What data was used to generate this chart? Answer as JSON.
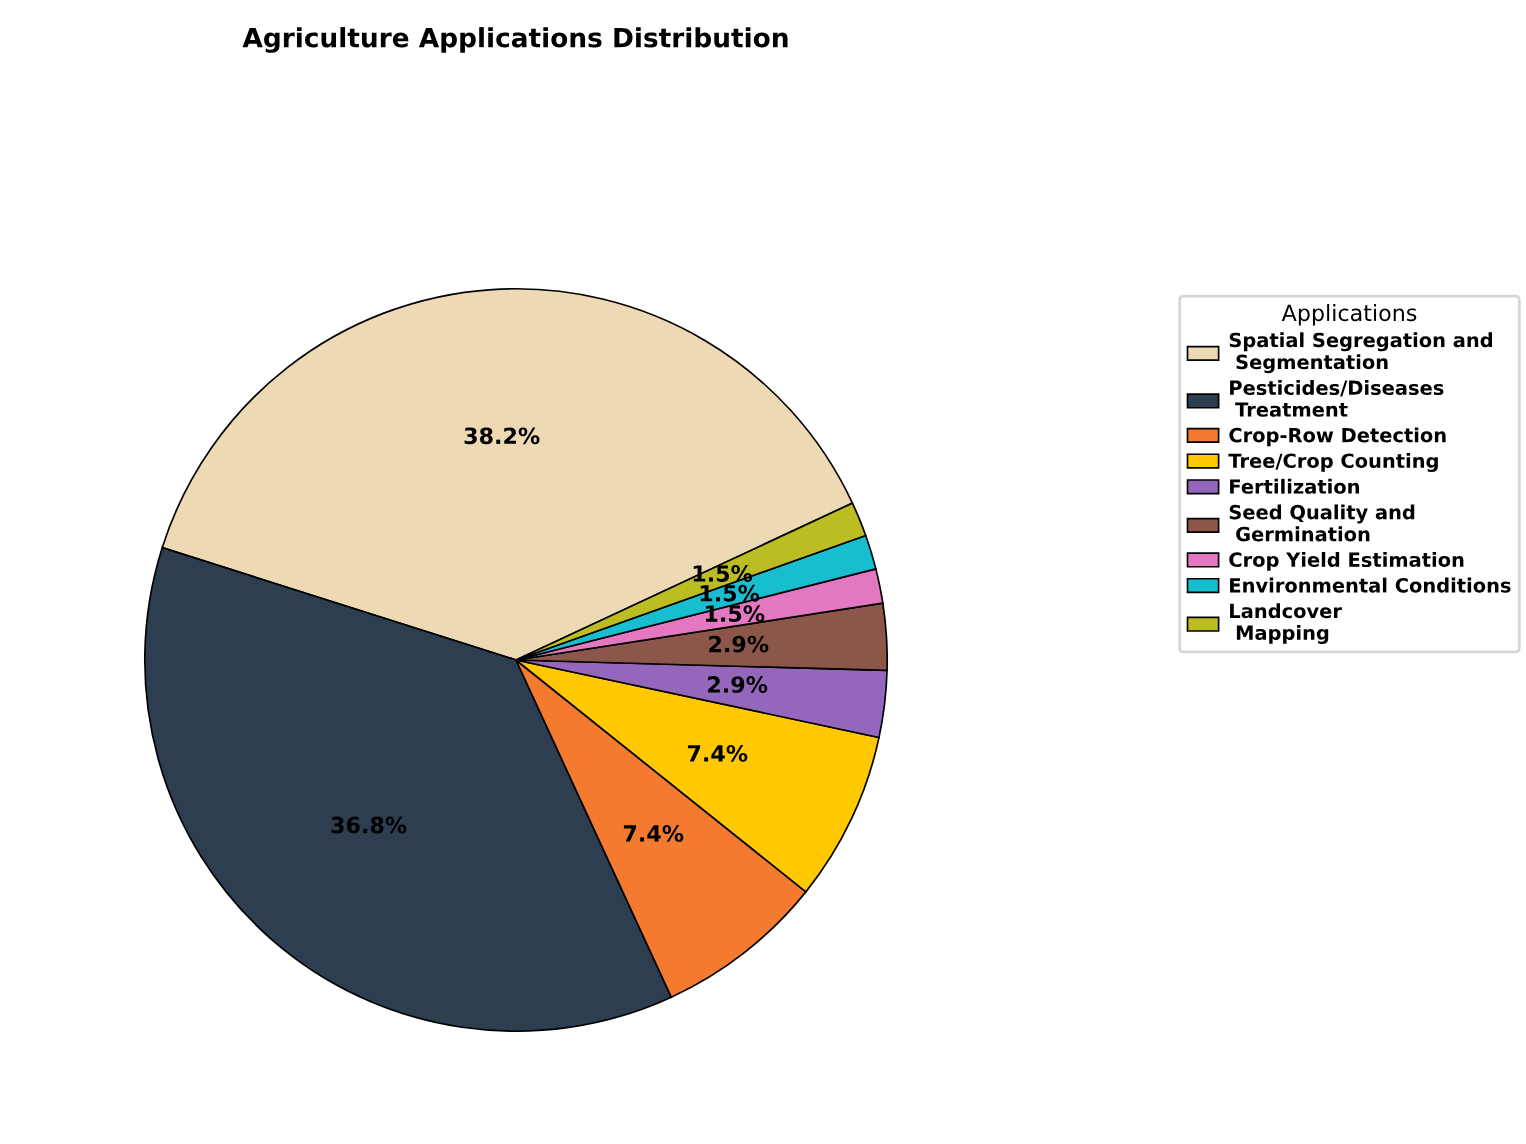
{
  "chart_data": {
    "type": "pie",
    "title": "Agriculture Applications Distribution",
    "legend_title": "Applications",
    "legend": "right",
    "value_labels": [
      "38.2%",
      "36.8%",
      "7.4%",
      "7.4%",
      "2.9%",
      "2.9%",
      "1.5%",
      "1.5%",
      "1.5%"
    ],
    "categories": [
      "Spatial Segregation and\n Segmentation",
      "Pesticides/Diseases\n Treatment",
      "Crop-Row Detection",
      "Tree/Crop Counting",
      "Fertilization",
      "Seed Quality and\n Germination",
      "Crop Yield Estimation",
      "Environmental Conditions",
      "Landcover\n Mapping"
    ],
    "values": [
      38.2,
      36.8,
      7.4,
      7.4,
      2.9,
      2.9,
      1.5,
      1.5,
      1.5
    ],
    "colors": [
      "#eed9b5",
      "#2c3e50",
      "#f47a30",
      "#ffc800",
      "#9467bd",
      "#8c564b",
      "#e377c2",
      "#17becf",
      "#bcbd22"
    ]
  }
}
